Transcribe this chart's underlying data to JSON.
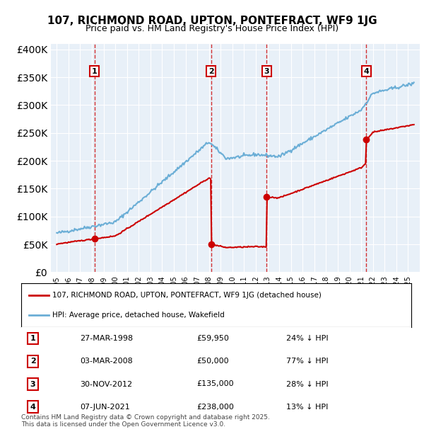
{
  "title_line1": "107, RICHMOND ROAD, UPTON, PONTEFRACT, WF9 1JG",
  "title_line2": "Price paid vs. HM Land Registry's House Price Index (HPI)",
  "legend_label_red": "107, RICHMOND ROAD, UPTON, PONTEFRACT, WF9 1JG (detached house)",
  "legend_label_blue": "HPI: Average price, detached house, Wakefield",
  "footer_line1": "Contains HM Land Registry data © Crown copyright and database right 2025.",
  "footer_line2": "This data is licensed under the Open Government Licence v3.0.",
  "transactions": [
    {
      "num": 1,
      "date": "27-MAR-1998",
      "price": "£59,950",
      "pct": "24% ↓ HPI",
      "year": 1998.23
    },
    {
      "num": 2,
      "date": "03-MAR-2008",
      "price": "£50,000",
      "pct": "77% ↓ HPI",
      "year": 2008.17
    },
    {
      "num": 3,
      "date": "30-NOV-2012",
      "price": "£135,000",
      "pct": "28% ↓ HPI",
      "year": 2012.92
    },
    {
      "num": 4,
      "date": "07-JUN-2021",
      "price": "£238,000",
      "pct": "13% ↓ HPI",
      "year": 2021.43
    }
  ],
  "transaction_prices": [
    59950,
    50000,
    135000,
    238000
  ],
  "hpi_color": "#6baed6",
  "price_color": "#cc0000",
  "dashed_line_color": "#cc0000",
  "bg_color": "#ddeeff",
  "plot_bg_color": "#e8f0f8",
  "ylim": [
    0,
    410000
  ],
  "yticks": [
    0,
    50000,
    100000,
    150000,
    200000,
    250000,
    300000,
    350000,
    400000
  ],
  "xlabel_start_year": 1995,
  "xlabel_end_year": 2025
}
